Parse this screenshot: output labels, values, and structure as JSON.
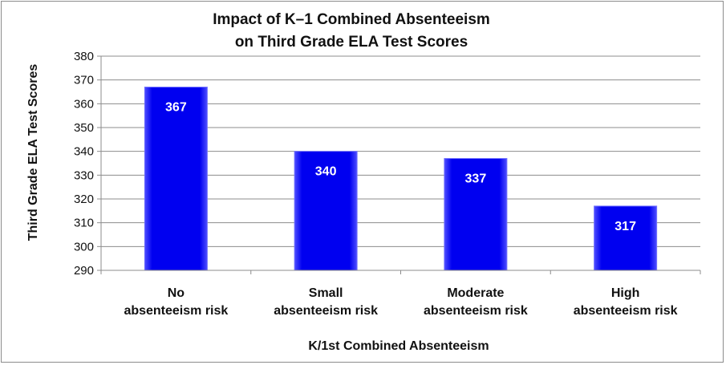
{
  "chart_data": {
    "type": "bar",
    "title": [
      "Impact of K–1 Combined Absenteeism",
      "on Third Grade ELA Test Scores"
    ],
    "xlabel": "K/1st Combined Absenteeism",
    "ylabel": "Third Grade ELA Test Scores",
    "categories": [
      [
        "No",
        "absenteeism risk"
      ],
      [
        "Small",
        "absenteeism risk"
      ],
      [
        "Moderate",
        "absenteeism risk"
      ],
      [
        "High",
        "absenteeism risk"
      ]
    ],
    "values": [
      367,
      340,
      337,
      317
    ],
    "data_labels": [
      "367",
      "340",
      "337",
      "317"
    ],
    "ylim": [
      290,
      380
    ],
    "yticks": [
      290,
      300,
      310,
      320,
      330,
      340,
      350,
      360,
      370,
      380
    ],
    "grid": true,
    "legend": "none",
    "bar_color": "#0000ee"
  }
}
